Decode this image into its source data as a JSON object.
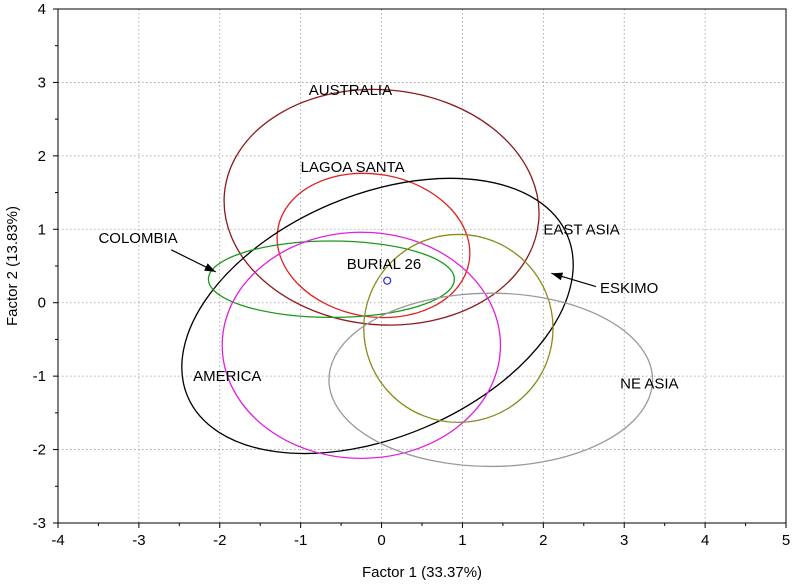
{
  "chart_data": {
    "type": "scatter",
    "xlabel": "Factor 1 (33.37%)",
    "ylabel": "Factor 2 (13.83%)",
    "xlim": [
      -4,
      5
    ],
    "ylim": [
      -3,
      4
    ],
    "xticks": [
      -4,
      -3,
      -2,
      -1,
      0,
      1,
      2,
      3,
      4,
      5
    ],
    "yticks": [
      -3,
      -2,
      -1,
      0,
      1,
      2,
      3,
      4
    ],
    "grid": true,
    "ellipses": [
      {
        "name": "AUSTRALIA",
        "color": "#8b1a1a",
        "cx": 0.0,
        "cy": 1.3,
        "rx": 1.95,
        "ry": 1.6,
        "angle": -5
      },
      {
        "name": "LAGOA SANTA",
        "color": "#e02020",
        "cx": -0.1,
        "cy": 0.78,
        "rx": 1.2,
        "ry": 0.97,
        "angle": -10
      },
      {
        "name": "EAST ASIA",
        "color": "#000000",
        "cx": -0.05,
        "cy": -0.18,
        "rx": 2.55,
        "ry": 1.65,
        "angle": 23
      },
      {
        "name": "COLOMBIA",
        "color": "#1a9a1a",
        "cx": -0.62,
        "cy": 0.32,
        "rx": 1.52,
        "ry": 0.52,
        "angle": 0
      },
      {
        "name": "AMERICA",
        "color": "#e020e0",
        "cx": -0.25,
        "cy": -0.58,
        "rx": 1.72,
        "ry": 1.54,
        "angle": 0
      },
      {
        "name": "ESKIMO",
        "color": "#8a8a1a",
        "cx": 0.95,
        "cy": -0.35,
        "rx": 1.17,
        "ry": 1.28,
        "angle": 0
      },
      {
        "name": "NE ASIA",
        "color": "#999999",
        "cx": 1.35,
        "cy": -1.05,
        "rx": 2.0,
        "ry": 1.18,
        "angle": 0
      }
    ],
    "points": [
      {
        "name": "BURIAL 26",
        "x": 0.07,
        "y": 0.3,
        "color": "#2a2ae0"
      }
    ],
    "labels": [
      {
        "text": "AUSTRALIA",
        "x": -0.9,
        "y": 2.9
      },
      {
        "text": "LAGOA SANTA",
        "x": -1.0,
        "y": 1.85
      },
      {
        "text": "EAST ASIA",
        "x": 2.0,
        "y": 1.0
      },
      {
        "text": "COLOMBIA",
        "x": -3.5,
        "y": 0.88
      },
      {
        "text": "BURIAL 26",
        "x": -0.43,
        "y": 0.53
      },
      {
        "text": "ESKIMO",
        "x": 2.7,
        "y": 0.2
      },
      {
        "text": "AMERICA",
        "x": -2.33,
        "y": -1.0
      },
      {
        "text": "NE ASIA",
        "x": 2.95,
        "y": -1.1
      }
    ],
    "arrows": [
      {
        "from": [
          -2.6,
          0.72
        ],
        "to": [
          -2.05,
          0.42
        ]
      },
      {
        "from": [
          2.65,
          0.22
        ],
        "to": [
          2.1,
          0.4
        ]
      }
    ]
  }
}
